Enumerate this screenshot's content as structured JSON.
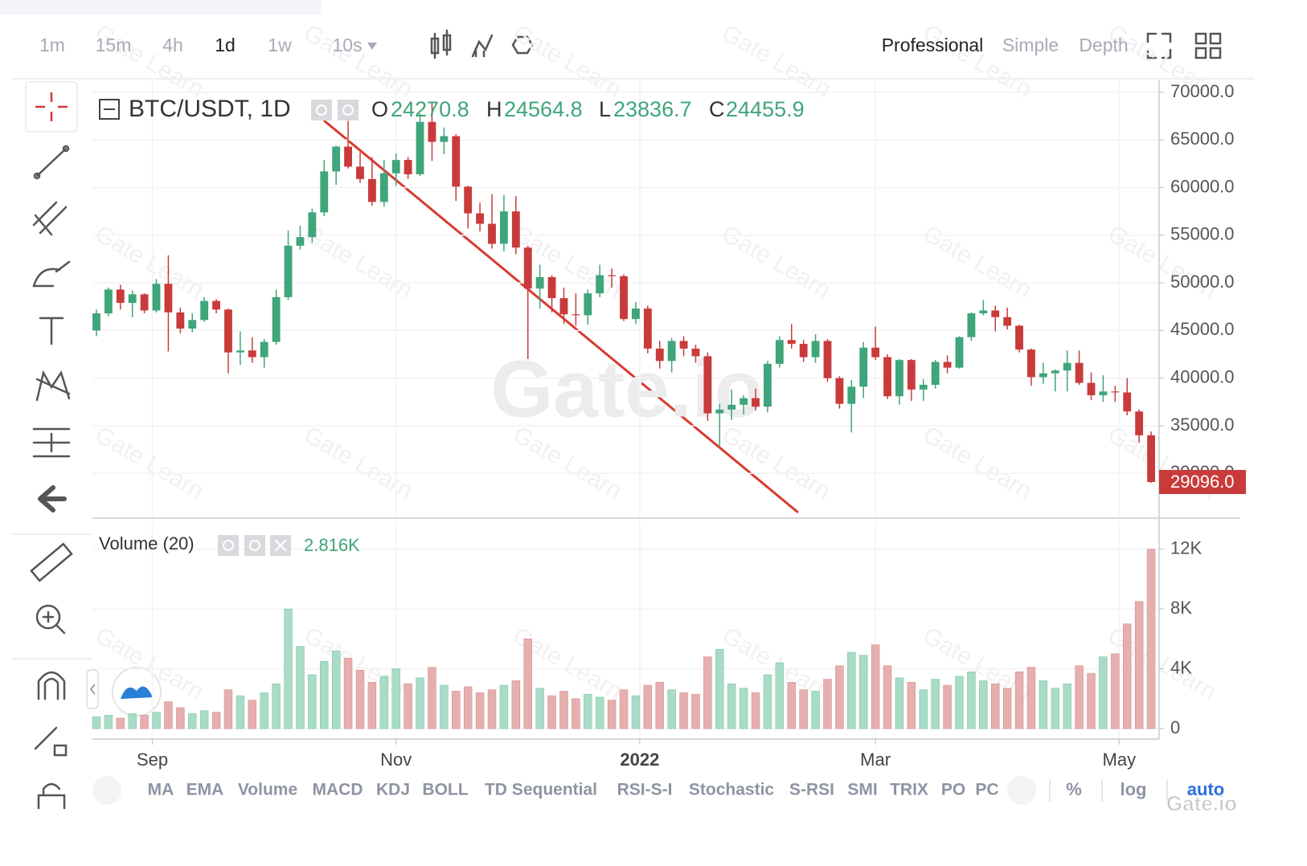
{
  "toolbar": {
    "intervals": [
      "1m",
      "15m",
      "4h",
      "1d",
      "1w",
      "10s"
    ],
    "views": [
      "Professional",
      "Simple",
      "Depth"
    ]
  },
  "chart_data": [
    {
      "type": "candlestick",
      "title": "BTC/USDT, 1D",
      "legend": {
        "labels": [
          "O",
          "H",
          "L",
          "C"
        ],
        "values": [
          24270.8,
          24564.8,
          23836.7,
          24455.9
        ]
      },
      "x": [
        1,
        4,
        7,
        10,
        13,
        16,
        19,
        22,
        25,
        28,
        31,
        34,
        37,
        40,
        43,
        46,
        49,
        52,
        55,
        58,
        61,
        64,
        67,
        70,
        73,
        76,
        79,
        82,
        85,
        88,
        91,
        94,
        97,
        100,
        103,
        106,
        109,
        112,
        115,
        118,
        121,
        124,
        127,
        130,
        133,
        136,
        139,
        142,
        145,
        148,
        151,
        154,
        157,
        160,
        163,
        166,
        169,
        172,
        175,
        178,
        181,
        184,
        187,
        190,
        193,
        196,
        199,
        202,
        205,
        208,
        211,
        214,
        217,
        220,
        223,
        226,
        229,
        232,
        235,
        238,
        241,
        244,
        247,
        250,
        253,
        256,
        259,
        262,
        265
      ],
      "open": [
        45000,
        46800,
        49300,
        47900,
        48800,
        47100,
        49900,
        46900,
        45200,
        46100,
        48100,
        47200,
        42700,
        42900,
        42200,
        43800,
        48500,
        53900,
        54800,
        57400,
        61700,
        64300,
        62200,
        60900,
        58500,
        61500,
        62900,
        61400,
        66900,
        64800,
        65400,
        60100,
        57300,
        56200,
        54100,
        57500,
        53700,
        49400,
        50600,
        48400,
        46700,
        46600,
        48900,
        50800,
        50700,
        46200,
        47300,
        43100,
        41800,
        43900,
        43100,
        42300,
        36300,
        36700,
        37200,
        37900,
        37000,
        41500,
        44000,
        43600,
        42200,
        43900,
        40000,
        37300,
        39100,
        43200,
        42200,
        38100,
        41900,
        38800,
        39300,
        41700,
        41100,
        44300,
        46800,
        47100,
        46400,
        45500,
        43000,
        40100,
        40500,
        40800,
        41600,
        39500,
        38200,
        38600,
        38500,
        36500,
        34000
      ],
      "high": [
        47200,
        49500,
        49800,
        49200,
        48900,
        50400,
        52900,
        47400,
        46800,
        48500,
        48300,
        47300,
        44900,
        44300,
        44100,
        49300,
        55500,
        56000,
        57800,
        62900,
        64400,
        67000,
        63700,
        63200,
        62900,
        63600,
        63200,
        67800,
        68900,
        66300,
        65600,
        60200,
        58400,
        59300,
        59200,
        59100,
        53900,
        51900,
        50800,
        49500,
        48900,
        49300,
        51900,
        51500,
        50900,
        48000,
        47600,
        43900,
        44200,
        44400,
        43500,
        42700,
        37300,
        38800,
        38200,
        38900,
        41800,
        44400,
        45700,
        44000,
        44600,
        44100,
        40200,
        39800,
        43800,
        45400,
        42500,
        42000,
        42000,
        39900,
        41900,
        42400,
        44400,
        46900,
        48200,
        47600,
        47400,
        45600,
        43100,
        41600,
        40900,
        42900,
        42900,
        40600,
        40300,
        39200,
        40000,
        36700,
        34400
      ],
      "low": [
        44400,
        46500,
        47200,
        46400,
        46800,
        46900,
        42800,
        44700,
        44800,
        45900,
        46800,
        40500,
        41400,
        41600,
        41100,
        43500,
        48200,
        53500,
        54200,
        57000,
        60300,
        62000,
        60500,
        58100,
        58000,
        60200,
        60900,
        61200,
        62800,
        63500,
        58600,
        55700,
        55400,
        53600,
        53300,
        53000,
        42000,
        47300,
        46900,
        45700,
        45500,
        45600,
        48500,
        49500,
        46000,
        45700,
        42600,
        41000,
        40600,
        42300,
        41600,
        35500,
        32900,
        35600,
        36200,
        36600,
        36400,
        41100,
        43100,
        41700,
        41600,
        39600,
        36800,
        34300,
        37900,
        41900,
        37800,
        37200,
        37600,
        37600,
        38900,
        40500,
        41000,
        43900,
        46600,
        44900,
        45100,
        42700,
        39200,
        39400,
        38600,
        38600,
        39300,
        37700,
        37500,
        37500,
        36100,
        33200,
        29000
      ],
      "close": [
        46800,
        49300,
        47900,
        48800,
        47100,
        49900,
        46900,
        45200,
        46100,
        48100,
        47200,
        42700,
        42900,
        42200,
        43800,
        48500,
        53900,
        54800,
        57400,
        61700,
        64300,
        62200,
        60900,
        58500,
        61500,
        62900,
        61400,
        66900,
        64800,
        65400,
        60100,
        57300,
        56200,
        54100,
        57500,
        53700,
        49400,
        50600,
        48400,
        46700,
        46600,
        48900,
        50800,
        50700,
        46200,
        47300,
        43100,
        41800,
        43900,
        43100,
        42300,
        36300,
        36700,
        37200,
        37900,
        37000,
        41500,
        44000,
        43600,
        42200,
        43900,
        40000,
        37300,
        39100,
        43200,
        42200,
        38100,
        41900,
        38800,
        39300,
        41700,
        41100,
        44300,
        46800,
        47100,
        46400,
        45500,
        43000,
        40100,
        40500,
        40800,
        41600,
        39500,
        38200,
        38600,
        38500,
        36500,
        34000,
        29096
      ],
      "xlim": [
        0,
        267
      ],
      "xticks": [
        {
          "value": 15,
          "label": "Sep"
        },
        {
          "value": 76,
          "label": "Nov"
        },
        {
          "value": 137,
          "label": "2022"
        },
        {
          "value": 196,
          "label": "Mar"
        },
        {
          "value": 257,
          "label": "May"
        }
      ],
      "ylim": [
        25300,
        71260
      ],
      "yticks": [
        {
          "value": 30000,
          "label": "30000.0"
        },
        {
          "value": 35000,
          "label": "35000.0"
        },
        {
          "value": 40000,
          "label": "40000.0"
        },
        {
          "value": 45000,
          "label": "45000.0"
        },
        {
          "value": 50000,
          "label": "50000.0"
        },
        {
          "value": 55000,
          "label": "55000.0"
        },
        {
          "value": 60000,
          "label": "60000.0"
        },
        {
          "value": 65000,
          "label": "65000.0"
        },
        {
          "value": 70000,
          "label": "70000.0"
        }
      ],
      "last_price": {
        "value": 29096,
        "label": "29096.0"
      },
      "up_color": "#3fa57a",
      "down_color": "#c93b3b",
      "grid": true
    },
    {
      "type": "bar",
      "title": "Volume (20)",
      "value_label": "2.816K",
      "x": [
        1,
        4,
        7,
        10,
        13,
        16,
        19,
        22,
        25,
        28,
        31,
        34,
        37,
        40,
        43,
        46,
        49,
        52,
        55,
        58,
        61,
        64,
        67,
        70,
        73,
        76,
        79,
        82,
        85,
        88,
        91,
        94,
        97,
        100,
        103,
        106,
        109,
        112,
        115,
        118,
        121,
        124,
        127,
        130,
        133,
        136,
        139,
        142,
        145,
        148,
        151,
        154,
        157,
        160,
        163,
        166,
        169,
        172,
        175,
        178,
        181,
        184,
        187,
        190,
        193,
        196,
        199,
        202,
        205,
        208,
        211,
        214,
        217,
        220,
        223,
        226,
        229,
        232,
        235,
        238,
        241,
        244,
        247,
        250,
        253,
        256,
        259,
        262,
        265
      ],
      "values": [
        800,
        900,
        700,
        1000,
        900,
        1100,
        1800,
        1400,
        1000,
        1200,
        1100,
        2600,
        2200,
        1900,
        2400,
        3000,
        8000,
        5500,
        3600,
        4500,
        5200,
        4700,
        3900,
        3100,
        3500,
        4000,
        3000,
        3400,
        4100,
        2900,
        2500,
        2800,
        2400,
        2600,
        2900,
        3200,
        6000,
        2700,
        2200,
        2500,
        2000,
        2300,
        2100,
        1900,
        2600,
        2200,
        2900,
        3100,
        2600,
        2400,
        2300,
        4800,
        5300,
        3000,
        2700,
        2400,
        3600,
        4400,
        3100,
        2600,
        2500,
        3300,
        4200,
        5100,
        4900,
        5600,
        4200,
        3400,
        3100,
        2600,
        3300,
        2900,
        3500,
        3800,
        3200,
        3000,
        2700,
        3800,
        4100,
        3200,
        2700,
        3000,
        4200,
        3700,
        4800,
        5000,
        7000,
        8500,
        12000
      ],
      "xlim": [
        0,
        267
      ],
      "ylim": [
        0,
        13800
      ],
      "yticks": [
        0,
        {
          "value": 4000,
          "label": "4K"
        },
        {
          "value": 8000,
          "label": "8K"
        },
        {
          "value": 12000,
          "label": "12K"
        }
      ],
      "up_color": "#a8dcc6",
      "down_color": "#e6afaf",
      "grid": true
    }
  ],
  "indicators": [
    "MA",
    "EMA",
    "Volume",
    "MACD",
    "KDJ",
    "BOLL",
    "TD Sequential",
    "RSI-S-I",
    "Stochastic",
    "S-RSI",
    "SMI",
    "TRIX",
    "PO",
    "PC"
  ],
  "scale_options": [
    "%",
    "log",
    "auto"
  ],
  "watermark": "Gate.io",
  "watermark_small": "Gate Learn"
}
